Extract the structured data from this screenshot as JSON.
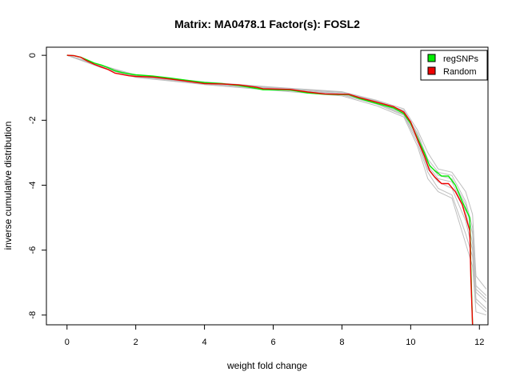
{
  "chart_data": {
    "type": "line",
    "title": "Matrix: MA0478.1 Factor(s): FOSL2",
    "xlabel": "weight fold change",
    "ylabel": "inverse cumulative distribution",
    "xlim": [
      -0.6,
      12.25
    ],
    "ylim": [
      -8.3,
      0.25
    ],
    "x_ticks": [
      0,
      2,
      4,
      6,
      8,
      10,
      12
    ],
    "y_ticks": [
      0,
      -2,
      -4,
      -6,
      -8
    ],
    "grid": false,
    "legend_position": "top-right",
    "legend": [
      "regSNPs",
      "Random"
    ],
    "colors": {
      "regSNPs": "#00ee00",
      "Random": "#ee0000",
      "background_runs": "#bebebe"
    },
    "series": [
      {
        "name": "regSNPs",
        "color": "#00ee00",
        "points": [
          [
            0,
            0
          ],
          [
            0.2,
            -0.01
          ],
          [
            0.4,
            -0.06
          ],
          [
            0.6,
            -0.15
          ],
          [
            0.8,
            -0.24
          ],
          [
            1.0,
            -0.3
          ],
          [
            1.2,
            -0.38
          ],
          [
            1.4,
            -0.48
          ],
          [
            1.6,
            -0.53
          ],
          [
            1.8,
            -0.57
          ],
          [
            2.0,
            -0.6
          ],
          [
            2.5,
            -0.64
          ],
          [
            3.0,
            -0.7
          ],
          [
            3.5,
            -0.77
          ],
          [
            4.0,
            -0.84
          ],
          [
            4.5,
            -0.87
          ],
          [
            5.0,
            -0.93
          ],
          [
            5.5,
            -1.02
          ],
          [
            5.7,
            -1.06
          ],
          [
            6.5,
            -1.07
          ],
          [
            7.0,
            -1.16
          ],
          [
            7.5,
            -1.2
          ],
          [
            8.0,
            -1.21
          ],
          [
            8.2,
            -1.21
          ],
          [
            8.5,
            -1.33
          ],
          [
            9.0,
            -1.48
          ],
          [
            9.5,
            -1.62
          ],
          [
            9.8,
            -1.8
          ],
          [
            10.0,
            -2.1
          ],
          [
            10.2,
            -2.55
          ],
          [
            10.4,
            -3.0
          ],
          [
            10.55,
            -3.4
          ],
          [
            10.7,
            -3.55
          ],
          [
            10.9,
            -3.72
          ],
          [
            11.1,
            -3.72
          ],
          [
            11.3,
            -4.0
          ],
          [
            11.5,
            -4.5
          ],
          [
            11.72,
            -5.0
          ],
          [
            11.75,
            -6.5
          ],
          [
            11.8,
            -8.3
          ]
        ]
      },
      {
        "name": "Random",
        "color": "#ee0000",
        "points": [
          [
            0,
            0
          ],
          [
            0.2,
            -0.01
          ],
          [
            0.4,
            -0.06
          ],
          [
            0.6,
            -0.18
          ],
          [
            0.8,
            -0.28
          ],
          [
            1.0,
            -0.36
          ],
          [
            1.2,
            -0.44
          ],
          [
            1.4,
            -0.55
          ],
          [
            1.6,
            -0.59
          ],
          [
            1.8,
            -0.63
          ],
          [
            2.0,
            -0.65
          ],
          [
            2.5,
            -0.67
          ],
          [
            3.0,
            -0.73
          ],
          [
            3.5,
            -0.8
          ],
          [
            4.0,
            -0.87
          ],
          [
            4.5,
            -0.88
          ],
          [
            5.0,
            -0.91
          ],
          [
            5.5,
            -0.98
          ],
          [
            5.7,
            -1.03
          ],
          [
            6.5,
            -1.05
          ],
          [
            7.0,
            -1.13
          ],
          [
            7.5,
            -1.19
          ],
          [
            8.0,
            -1.2
          ],
          [
            8.2,
            -1.2
          ],
          [
            8.5,
            -1.3
          ],
          [
            9.0,
            -1.44
          ],
          [
            9.5,
            -1.58
          ],
          [
            9.8,
            -1.75
          ],
          [
            10.0,
            -2.05
          ],
          [
            10.2,
            -2.6
          ],
          [
            10.4,
            -3.1
          ],
          [
            10.55,
            -3.55
          ],
          [
            10.7,
            -3.75
          ],
          [
            10.9,
            -3.95
          ],
          [
            11.1,
            -3.95
          ],
          [
            11.3,
            -4.2
          ],
          [
            11.5,
            -4.6
          ],
          [
            11.72,
            -5.4
          ],
          [
            11.75,
            -6.8
          ],
          [
            11.8,
            -8.3
          ]
        ]
      }
    ],
    "background_runs": [
      {
        "points": [
          [
            0,
            0
          ],
          [
            1.0,
            -0.3
          ],
          [
            2.0,
            -0.62
          ],
          [
            4.0,
            -0.85
          ],
          [
            6.0,
            -1.0
          ],
          [
            8.0,
            -1.15
          ],
          [
            9.0,
            -1.4
          ],
          [
            9.8,
            -1.7
          ],
          [
            10.2,
            -2.4
          ],
          [
            10.5,
            -3.2
          ],
          [
            10.8,
            -3.6
          ],
          [
            11.2,
            -3.7
          ],
          [
            11.6,
            -4.5
          ],
          [
            11.8,
            -5.3
          ],
          [
            11.9,
            -7.1
          ],
          [
            12.2,
            -7.4
          ]
        ]
      },
      {
        "points": [
          [
            0,
            0
          ],
          [
            1.0,
            -0.35
          ],
          [
            2.0,
            -0.66
          ],
          [
            4.0,
            -0.88
          ],
          [
            6.0,
            -1.05
          ],
          [
            8.0,
            -1.22
          ],
          [
            9.0,
            -1.5
          ],
          [
            9.8,
            -1.85
          ],
          [
            10.2,
            -2.7
          ],
          [
            10.5,
            -3.6
          ],
          [
            10.8,
            -4.1
          ],
          [
            11.2,
            -4.3
          ],
          [
            11.6,
            -5.5
          ],
          [
            11.8,
            -6.2
          ],
          [
            11.9,
            -7.6
          ],
          [
            12.2,
            -7.9
          ]
        ]
      },
      {
        "points": [
          [
            0,
            0
          ],
          [
            1.0,
            -0.32
          ],
          [
            2.0,
            -0.6
          ],
          [
            4.0,
            -0.82
          ],
          [
            6.0,
            -0.98
          ],
          [
            8.0,
            -1.12
          ],
          [
            9.0,
            -1.38
          ],
          [
            9.8,
            -1.65
          ],
          [
            10.2,
            -2.3
          ],
          [
            10.5,
            -3.0
          ],
          [
            10.8,
            -3.5
          ],
          [
            11.2,
            -3.6
          ],
          [
            11.6,
            -4.2
          ],
          [
            11.8,
            -4.9
          ],
          [
            11.9,
            -6.8
          ],
          [
            12.2,
            -7.2
          ]
        ]
      },
      {
        "points": [
          [
            0,
            0
          ],
          [
            1.0,
            -0.38
          ],
          [
            2.0,
            -0.68
          ],
          [
            4.0,
            -0.9
          ],
          [
            6.0,
            -1.08
          ],
          [
            8.0,
            -1.25
          ],
          [
            9.0,
            -1.55
          ],
          [
            9.8,
            -1.9
          ],
          [
            10.2,
            -2.8
          ],
          [
            10.5,
            -3.8
          ],
          [
            10.8,
            -4.2
          ],
          [
            11.2,
            -4.4
          ],
          [
            11.6,
            -5.8
          ],
          [
            11.8,
            -6.5
          ],
          [
            11.9,
            -7.9
          ],
          [
            12.2,
            -8.0
          ]
        ]
      },
      {
        "points": [
          [
            0,
            0
          ],
          [
            1.0,
            -0.33
          ],
          [
            2.0,
            -0.63
          ],
          [
            4.0,
            -0.86
          ],
          [
            6.0,
            -1.02
          ],
          [
            8.0,
            -1.18
          ],
          [
            9.0,
            -1.45
          ],
          [
            9.8,
            -1.78
          ],
          [
            10.2,
            -2.5
          ],
          [
            10.5,
            -3.4
          ],
          [
            10.8,
            -3.8
          ],
          [
            11.2,
            -3.9
          ],
          [
            11.6,
            -4.8
          ],
          [
            11.8,
            -5.8
          ],
          [
            11.9,
            -7.3
          ],
          [
            12.2,
            -7.6
          ]
        ]
      },
      {
        "points": [
          [
            0,
            0
          ],
          [
            1.0,
            -0.36
          ],
          [
            2.0,
            -0.64
          ],
          [
            4.0,
            -0.87
          ],
          [
            6.0,
            -1.04
          ],
          [
            8.0,
            -1.2
          ],
          [
            9.0,
            -1.47
          ],
          [
            9.8,
            -1.82
          ],
          [
            10.2,
            -2.6
          ],
          [
            10.5,
            -3.5
          ],
          [
            10.8,
            -3.9
          ],
          [
            11.2,
            -4.1
          ],
          [
            11.6,
            -5.1
          ],
          [
            11.8,
            -6.0
          ],
          [
            11.9,
            -7.5
          ],
          [
            12.2,
            -7.8
          ]
        ]
      },
      {
        "points": [
          [
            0,
            0
          ],
          [
            1.0,
            -0.31
          ],
          [
            2.0,
            -0.61
          ],
          [
            4.0,
            -0.84
          ],
          [
            6.0,
            -0.99
          ],
          [
            8.0,
            -1.14
          ],
          [
            9.0,
            -1.42
          ],
          [
            9.8,
            -1.72
          ],
          [
            10.2,
            -2.45
          ],
          [
            10.5,
            -3.3
          ],
          [
            10.8,
            -3.7
          ],
          [
            11.2,
            -3.8
          ],
          [
            11.6,
            -4.6
          ],
          [
            11.8,
            -5.5
          ],
          [
            11.9,
            -7.2
          ],
          [
            12.2,
            -7.5
          ]
        ]
      }
    ]
  }
}
